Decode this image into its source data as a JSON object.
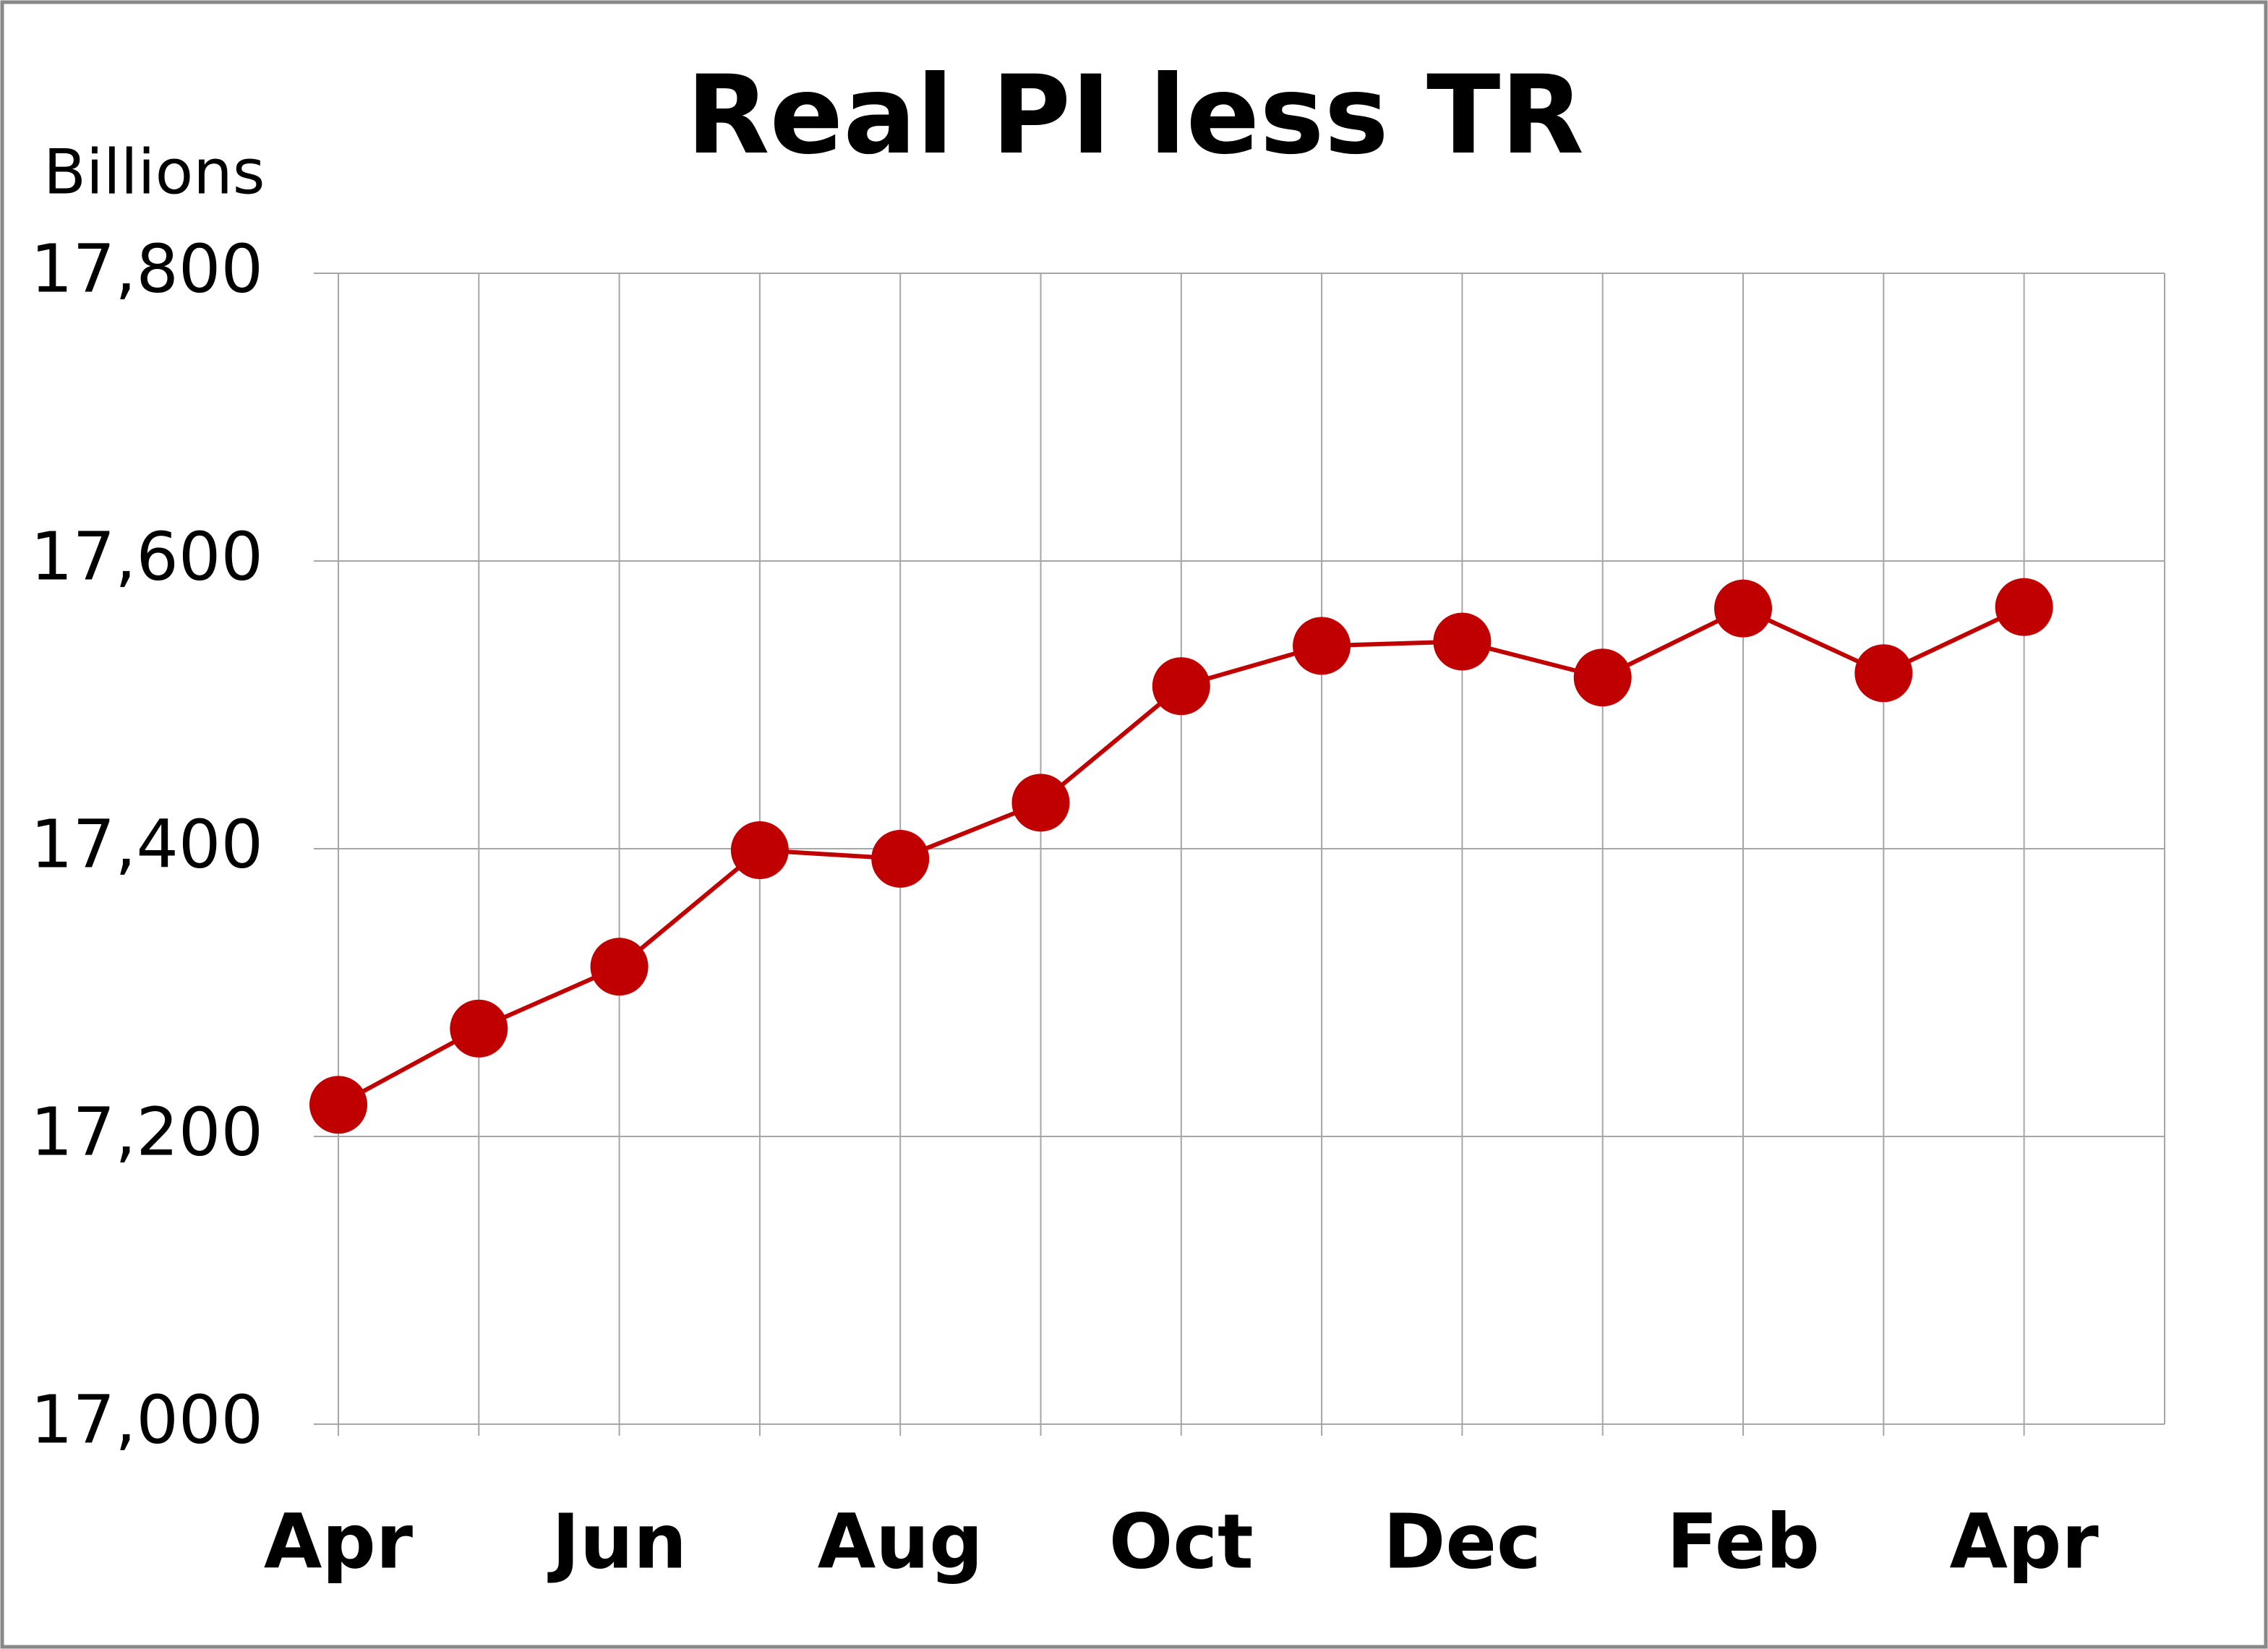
{
  "chart_data": {
    "type": "line",
    "title": "Real PI less TR",
    "y_label": "Billions",
    "categories": [
      "Apr",
      null,
      "Jun",
      null,
      "Aug",
      null,
      "Oct",
      null,
      "Dec",
      null,
      "Feb",
      null,
      "Apr"
    ],
    "series": [
      {
        "name": "Real PI less TR",
        "color": "#c00000",
        "values": [
          17222,
          17275,
          17318,
          17399,
          17393,
          17432,
          17513,
          17541,
          17544,
          17519,
          17567,
          17522,
          17568
        ]
      }
    ],
    "ylim": [
      17000,
      17800
    ],
    "yticks": [
      {
        "value": 17000,
        "label": "17,000"
      },
      {
        "value": 17200,
        "label": "17,200"
      },
      {
        "value": 17400,
        "label": "17,400"
      },
      {
        "value": 17600,
        "label": "17,600"
      },
      {
        "value": 17800,
        "label": "17,800"
      }
    ],
    "grid": true
  }
}
